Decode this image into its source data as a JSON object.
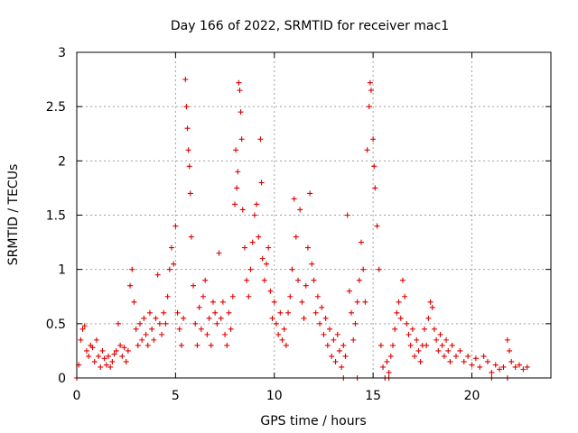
{
  "chart_data": {
    "type": "scatter",
    "title": "Day 166 of 2022, SRMTID for receiver mac1",
    "xlabel": "GPS time / hours",
    "ylabel": "SRMTID / TECUs",
    "xlim": [
      0,
      24
    ],
    "ylim": [
      0,
      3
    ],
    "xticks": [
      0,
      5,
      10,
      15,
      20
    ],
    "yticks": [
      0,
      0.5,
      1,
      1.5,
      2,
      2.5,
      3
    ],
    "ytick_labels": [
      "0",
      "0.5",
      "1",
      "1.5",
      "2",
      "2.5",
      "3"
    ],
    "grid": true,
    "marker": "+",
    "color": "#e00000",
    "series": [
      {
        "name": "SRMTID",
        "points": [
          [
            0.0,
            0.0
          ],
          [
            0.1,
            0.12
          ],
          [
            0.2,
            0.35
          ],
          [
            0.3,
            0.45
          ],
          [
            0.4,
            0.48
          ],
          [
            0.5,
            0.25
          ],
          [
            0.6,
            0.2
          ],
          [
            0.7,
            0.3
          ],
          [
            0.8,
            0.28
          ],
          [
            0.9,
            0.15
          ],
          [
            1.0,
            0.35
          ],
          [
            1.1,
            0.2
          ],
          [
            1.2,
            0.1
          ],
          [
            1.3,
            0.25
          ],
          [
            1.4,
            0.18
          ],
          [
            1.5,
            0.12
          ],
          [
            1.6,
            0.2
          ],
          [
            1.7,
            0.1
          ],
          [
            1.8,
            0.15
          ],
          [
            1.9,
            0.22
          ],
          [
            2.0,
            0.25
          ],
          [
            2.1,
            0.5
          ],
          [
            2.2,
            0.3
          ],
          [
            2.3,
            0.2
          ],
          [
            2.4,
            0.28
          ],
          [
            2.5,
            0.15
          ],
          [
            2.6,
            0.25
          ],
          [
            2.7,
            0.85
          ],
          [
            2.8,
            1.0
          ],
          [
            2.9,
            0.7
          ],
          [
            3.0,
            0.45
          ],
          [
            3.1,
            0.3
          ],
          [
            3.2,
            0.5
          ],
          [
            3.3,
            0.35
          ],
          [
            3.4,
            0.55
          ],
          [
            3.5,
            0.4
          ],
          [
            3.6,
            0.3
          ],
          [
            3.7,
            0.6
          ],
          [
            3.8,
            0.45
          ],
          [
            3.9,
            0.35
          ],
          [
            4.0,
            0.55
          ],
          [
            4.1,
            0.95
          ],
          [
            4.2,
            0.5
          ],
          [
            4.3,
            0.4
          ],
          [
            4.4,
            0.6
          ],
          [
            4.5,
            0.5
          ],
          [
            4.6,
            0.75
          ],
          [
            4.7,
            1.0
          ],
          [
            4.8,
            1.2
          ],
          [
            4.9,
            1.05
          ],
          [
            5.0,
            1.4
          ],
          [
            5.1,
            0.6
          ],
          [
            5.2,
            0.45
          ],
          [
            5.3,
            0.3
          ],
          [
            5.4,
            0.55
          ],
          [
            5.5,
            2.75
          ],
          [
            5.55,
            2.5
          ],
          [
            5.6,
            2.3
          ],
          [
            5.65,
            2.1
          ],
          [
            5.7,
            1.95
          ],
          [
            5.75,
            1.7
          ],
          [
            5.8,
            1.3
          ],
          [
            5.9,
            0.85
          ],
          [
            6.0,
            0.5
          ],
          [
            6.1,
            0.3
          ],
          [
            6.2,
            0.65
          ],
          [
            6.3,
            0.45
          ],
          [
            6.4,
            0.75
          ],
          [
            6.5,
            0.9
          ],
          [
            6.6,
            0.4
          ],
          [
            6.7,
            0.55
          ],
          [
            6.8,
            0.3
          ],
          [
            6.9,
            0.7
          ],
          [
            7.0,
            0.6
          ],
          [
            7.1,
            0.5
          ],
          [
            7.2,
            1.15
          ],
          [
            7.3,
            0.55
          ],
          [
            7.4,
            0.7
          ],
          [
            7.5,
            0.4
          ],
          [
            7.6,
            0.3
          ],
          [
            7.7,
            0.6
          ],
          [
            7.8,
            0.45
          ],
          [
            7.9,
            0.75
          ],
          [
            8.0,
            1.6
          ],
          [
            8.05,
            2.1
          ],
          [
            8.1,
            1.75
          ],
          [
            8.15,
            1.9
          ],
          [
            8.2,
            2.72
          ],
          [
            8.25,
            2.65
          ],
          [
            8.3,
            2.45
          ],
          [
            8.35,
            2.2
          ],
          [
            8.4,
            1.55
          ],
          [
            8.5,
            1.2
          ],
          [
            8.6,
            0.9
          ],
          [
            8.7,
            0.75
          ],
          [
            8.8,
            1.0
          ],
          [
            8.9,
            1.25
          ],
          [
            9.0,
            1.5
          ],
          [
            9.1,
            1.6
          ],
          [
            9.2,
            1.3
          ],
          [
            9.3,
            2.2
          ],
          [
            9.35,
            1.8
          ],
          [
            9.4,
            1.1
          ],
          [
            9.5,
            0.9
          ],
          [
            9.6,
            1.05
          ],
          [
            9.7,
            1.2
          ],
          [
            9.8,
            0.8
          ],
          [
            9.9,
            0.55
          ],
          [
            10.0,
            0.7
          ],
          [
            10.1,
            0.5
          ],
          [
            10.2,
            0.4
          ],
          [
            10.3,
            0.6
          ],
          [
            10.4,
            0.35
          ],
          [
            10.5,
            0.45
          ],
          [
            10.6,
            0.3
          ],
          [
            10.7,
            0.6
          ],
          [
            10.8,
            0.75
          ],
          [
            10.9,
            1.0
          ],
          [
            11.0,
            1.65
          ],
          [
            11.1,
            1.3
          ],
          [
            11.2,
            0.9
          ],
          [
            11.3,
            1.55
          ],
          [
            11.4,
            0.7
          ],
          [
            11.5,
            0.55
          ],
          [
            11.6,
            0.85
          ],
          [
            11.7,
            1.2
          ],
          [
            11.8,
            1.7
          ],
          [
            11.9,
            1.05
          ],
          [
            12.0,
            0.9
          ],
          [
            12.1,
            0.6
          ],
          [
            12.2,
            0.75
          ],
          [
            12.3,
            0.5
          ],
          [
            12.4,
            0.65
          ],
          [
            12.5,
            0.4
          ],
          [
            12.6,
            0.55
          ],
          [
            12.7,
            0.3
          ],
          [
            12.8,
            0.45
          ],
          [
            12.9,
            0.2
          ],
          [
            13.0,
            0.35
          ],
          [
            13.1,
            0.15
          ],
          [
            13.2,
            0.4
          ],
          [
            13.3,
            0.25
          ],
          [
            13.4,
            0.1
          ],
          [
            13.5,
            0.3
          ],
          [
            13.6,
            0.2
          ],
          [
            13.7,
            1.5
          ],
          [
            13.8,
            0.8
          ],
          [
            13.9,
            0.6
          ],
          [
            14.0,
            0.35
          ],
          [
            14.1,
            0.5
          ],
          [
            14.2,
            0.7
          ],
          [
            14.3,
            0.9
          ],
          [
            14.4,
            1.25
          ],
          [
            14.5,
            1.0
          ],
          [
            14.6,
            0.7
          ],
          [
            14.7,
            2.1
          ],
          [
            14.8,
            2.5
          ],
          [
            14.85,
            2.72
          ],
          [
            14.9,
            2.65
          ],
          [
            15.0,
            2.2
          ],
          [
            15.05,
            1.95
          ],
          [
            15.1,
            1.75
          ],
          [
            15.2,
            1.4
          ],
          [
            15.3,
            1.0
          ],
          [
            15.4,
            0.3
          ],
          [
            15.5,
            0.1
          ],
          [
            15.6,
            0.0
          ],
          [
            15.7,
            0.15
          ],
          [
            15.8,
            0.05
          ],
          [
            15.9,
            0.2
          ],
          [
            16.0,
            0.3
          ],
          [
            16.1,
            0.45
          ],
          [
            16.2,
            0.6
          ],
          [
            16.3,
            0.7
          ],
          [
            16.4,
            0.55
          ],
          [
            16.5,
            0.9
          ],
          [
            16.6,
            0.75
          ],
          [
            16.7,
            0.5
          ],
          [
            16.8,
            0.4
          ],
          [
            16.9,
            0.3
          ],
          [
            17.0,
            0.45
          ],
          [
            17.1,
            0.2
          ],
          [
            17.2,
            0.35
          ],
          [
            17.3,
            0.25
          ],
          [
            17.4,
            0.15
          ],
          [
            17.5,
            0.3
          ],
          [
            17.6,
            0.45
          ],
          [
            17.7,
            0.3
          ],
          [
            17.8,
            0.55
          ],
          [
            17.9,
            0.7
          ],
          [
            18.0,
            0.65
          ],
          [
            18.1,
            0.45
          ],
          [
            18.2,
            0.35
          ],
          [
            18.3,
            0.25
          ],
          [
            18.4,
            0.4
          ],
          [
            18.5,
            0.3
          ],
          [
            18.6,
            0.2
          ],
          [
            18.7,
            0.35
          ],
          [
            18.8,
            0.25
          ],
          [
            18.9,
            0.15
          ],
          [
            19.0,
            0.3
          ],
          [
            19.2,
            0.2
          ],
          [
            19.4,
            0.25
          ],
          [
            19.6,
            0.15
          ],
          [
            19.8,
            0.2
          ],
          [
            20.0,
            0.12
          ],
          [
            20.2,
            0.18
          ],
          [
            20.4,
            0.1
          ],
          [
            20.6,
            0.2
          ],
          [
            20.8,
            0.15
          ],
          [
            21.0,
            0.05
          ],
          [
            21.2,
            0.12
          ],
          [
            21.4,
            0.08
          ],
          [
            21.6,
            0.1
          ],
          [
            21.8,
            0.35
          ],
          [
            21.9,
            0.25
          ],
          [
            22.0,
            0.15
          ],
          [
            22.2,
            0.1
          ],
          [
            22.4,
            0.12
          ],
          [
            22.6,
            0.08
          ],
          [
            22.8,
            0.1
          ],
          [
            13.5,
            0.0
          ],
          [
            14.2,
            0.0
          ],
          [
            15.8,
            0.0
          ],
          [
            21.0,
            0.0
          ],
          [
            21.8,
            0.0
          ]
        ]
      }
    ]
  }
}
